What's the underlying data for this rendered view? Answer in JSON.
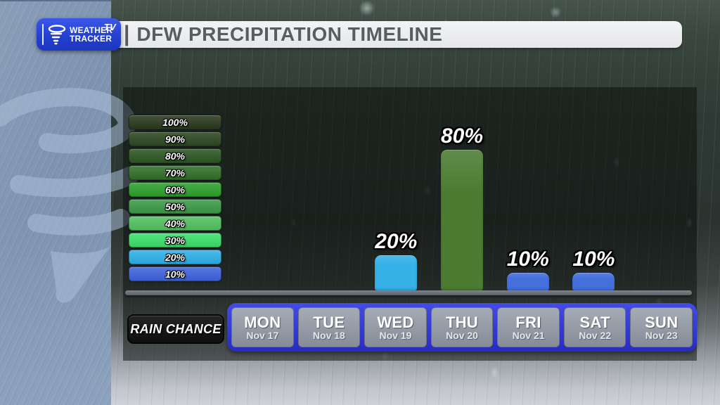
{
  "logo": {
    "brand_line1": "WEATHER",
    "brand_line2": "TRACKER",
    "badge": "TV"
  },
  "header": {
    "divider": "|",
    "title": "DFW PRECIPITATION TIMELINE"
  },
  "axis_label": "RAIN CHANCE",
  "colors": {
    "brand_blue": "#2742d4",
    "day_strip_blue": "#3238d2",
    "header_bar": "#e9eaee",
    "header_text": "#585d62"
  },
  "chart_data": {
    "type": "bar",
    "title": "DFW PRECIPITATION TIMELINE",
    "ylabel": "RAIN CHANCE",
    "unit": "%",
    "ylim": [
      0,
      100
    ],
    "grid": false,
    "legend_position": "left",
    "categories": [
      "MON",
      "TUE",
      "WED",
      "THU",
      "FRI",
      "SAT",
      "SUN"
    ],
    "dates": [
      "Nov 17",
      "Nov 18",
      "Nov 19",
      "Nov 20",
      "Nov 21",
      "Nov 22",
      "Nov 23"
    ],
    "values": [
      null,
      null,
      20,
      80,
      10,
      10,
      null
    ],
    "bar_colors": [
      null,
      null,
      "#35b1e8",
      "#4b7c32",
      "#4570dc",
      "#4570dc",
      null
    ],
    "legend": [
      {
        "label": "100%",
        "color": "#2b3a1f"
      },
      {
        "label": "90%",
        "color": "#2d4822"
      },
      {
        "label": "80%",
        "color": "#2e5825"
      },
      {
        "label": "70%",
        "color": "#33702b"
      },
      {
        "label": "60%",
        "color": "#2ea22d"
      },
      {
        "label": "50%",
        "color": "#3e9b49"
      },
      {
        "label": "40%",
        "color": "#54c261"
      },
      {
        "label": "30%",
        "color": "#3ce06d"
      },
      {
        "label": "20%",
        "color": "#2fb2ea"
      },
      {
        "label": "10%",
        "color": "#3f64de"
      }
    ]
  }
}
